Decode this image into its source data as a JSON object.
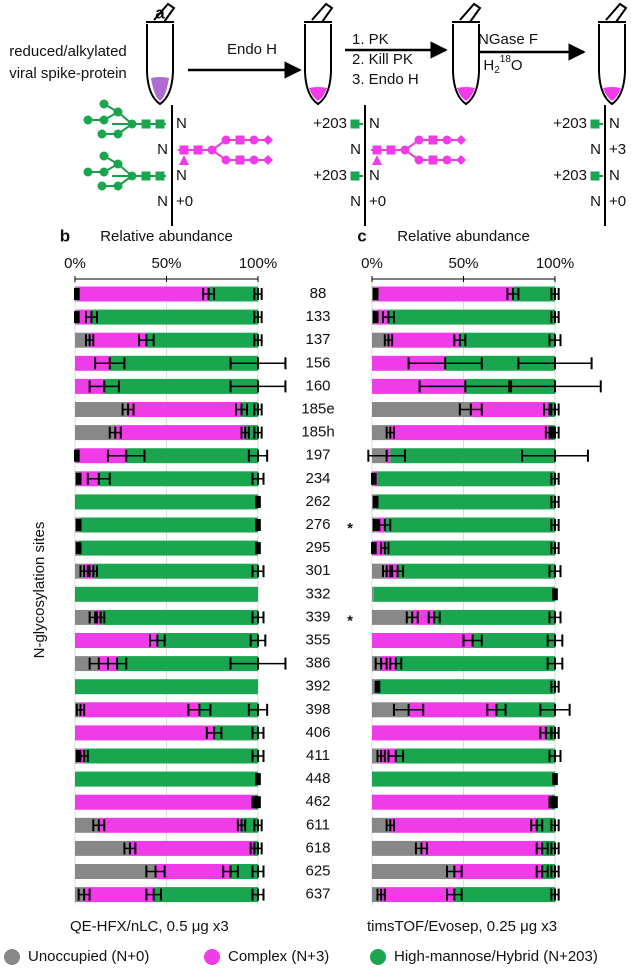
{
  "panel_a": {
    "label": "a",
    "start": [
      "reduced/alkylated",
      "viral spike-protein"
    ],
    "step1": "Endo H",
    "step2": [
      "1. PK",
      "2. Kill PK",
      "3. Endo H"
    ],
    "step3": {
      "enzyme": "PNGase F",
      "water": "H",
      "water_sub": "2",
      "water_sup": "18",
      "water_end": "O"
    },
    "site": "N",
    "tag_203": "+203",
    "tag_0": "+0",
    "tag_3": "+3"
  },
  "chart_data": [
    {
      "type": "stacked-bar-horizontal",
      "panel": "b",
      "xlabel": "Relative abundance",
      "ylabel": "N-glycosylation sites",
      "note": "QE-HFX/nLC, 0.5 μg x3",
      "categories": [
        "88",
        "133",
        "137",
        "156",
        "160",
        "185e",
        "185h",
        "197",
        "234",
        "262",
        "276",
        "295",
        "301",
        "332",
        "339",
        "355",
        "386",
        "392",
        "398",
        "406",
        "411",
        "448",
        "462",
        "611",
        "618",
        "625",
        "637"
      ],
      "xlim": [
        0,
        100
      ],
      "xticks": [
        {
          "value": 0,
          "label": "0%"
        },
        {
          "value": 50,
          "label": "50%"
        },
        {
          "value": 100,
          "label": "100%"
        }
      ],
      "grid": true,
      "series": [
        {
          "name": "Unoccupied (N+0)",
          "color": "#888888",
          "values": [
            1,
            1,
            8,
            0,
            0,
            29,
            22,
            1,
            2,
            0,
            2,
            2,
            5,
            0,
            11,
            0,
            13,
            0,
            3,
            0,
            2,
            0,
            0,
            13,
            30,
            44,
            5
          ],
          "errors": [
            1,
            1,
            2,
            null,
            null,
            3,
            3,
            1,
            1,
            null,
            1,
            1,
            2,
            null,
            3,
            null,
            5,
            null,
            2,
            null,
            1,
            null,
            null,
            3,
            3,
            5,
            3
          ]
        },
        {
          "name": "Complex (N+3)",
          "color": "#f03ce8",
          "values": [
            72,
            8,
            31,
            19,
            16,
            62,
            71,
            27,
            11,
            0,
            0,
            0,
            5,
            0,
            3,
            45,
            10,
            0,
            65,
            76,
            3,
            0,
            98,
            78,
            68,
            41,
            38
          ],
          "errors": [
            3,
            3,
            4,
            8,
            8,
            3,
            2,
            10,
            6,
            null,
            null,
            null,
            2,
            null,
            2,
            4,
            5,
            null,
            6,
            4,
            2,
            null,
            1,
            2,
            2,
            4,
            4
          ]
        },
        {
          "name": "High-mannose/Hybrid (N+203)",
          "color": "#1aa64f",
          "values": [
            27,
            91,
            61,
            81,
            84,
            9,
            7,
            72,
            87,
            100,
            98,
            98,
            90,
            100,
            86,
            55,
            77,
            100,
            32,
            24,
            95,
            100,
            2,
            9,
            2,
            15,
            57
          ],
          "errors": [
            2,
            2,
            2,
            15,
            15,
            2,
            2,
            5,
            3,
            1,
            1,
            1,
            3,
            null,
            3,
            4,
            15,
            null,
            5,
            3,
            3,
            1,
            1,
            2,
            2,
            3,
            3
          ]
        }
      ]
    },
    {
      "type": "stacked-bar-horizontal",
      "panel": "c",
      "xlabel": "Relative abundance",
      "note": "timsTOF/Evosep, 0.25 μg x3",
      "xlim": [
        0,
        100
      ],
      "xticks": [
        {
          "value": 0,
          "label": "0%"
        },
        {
          "value": 50,
          "label": "50%"
        },
        {
          "value": 100,
          "label": "100%"
        }
      ],
      "grid": true,
      "annotations": [
        {
          "text": "*",
          "category": "276",
          "color": "#1aa64f"
        },
        {
          "text": "*",
          "category": "339",
          "color": "#1aa64f"
        }
      ],
      "series": [
        {
          "color": "#888888",
          "values": [
            2,
            2,
            9,
            0,
            0,
            54,
            10,
            8,
            1,
            2,
            2,
            1,
            8,
            1,
            22,
            0,
            5,
            3,
            20,
            0,
            5,
            0,
            0,
            10,
            27,
            45,
            5
          ],
          "errors": [
            1,
            1,
            2,
            null,
            null,
            6,
            2,
            10,
            1,
            1,
            1,
            1,
            2,
            null,
            3,
            null,
            3,
            1,
            8,
            null,
            2,
            null,
            null,
            2,
            3,
            4,
            2
          ]
        },
        {
          "color": "#f03ce8",
          "values": [
            75,
            7,
            39,
            40,
            51,
            43,
            87,
            2,
            2,
            0,
            5,
            6,
            6,
            0,
            12,
            55,
            8,
            0,
            48,
            95,
            8,
            0,
            98,
            80,
            66,
            48,
            40
          ],
          "errors": [
            3,
            3,
            3,
            20,
            25,
            3,
            2,
            null,
            null,
            null,
            3,
            2,
            3,
            null,
            3,
            5,
            3,
            null,
            5,
            3,
            4,
            null,
            1,
            3,
            3,
            3,
            4
          ]
        },
        {
          "color": "#1aa64f",
          "values": [
            23,
            91,
            52,
            60,
            49,
            3,
            3,
            90,
            97,
            98,
            93,
            93,
            86,
            99,
            66,
            45,
            87,
            97,
            32,
            5,
            87,
            100,
            2,
            10,
            7,
            7,
            55
          ],
          "errors": [
            2,
            2,
            3,
            20,
            25,
            2,
            2,
            18,
            2,
            2,
            2,
            2,
            3,
            1,
            3,
            4,
            4,
            2,
            8,
            2,
            3,
            1,
            1,
            2,
            2,
            2,
            2
          ]
        }
      ]
    }
  ]
}
